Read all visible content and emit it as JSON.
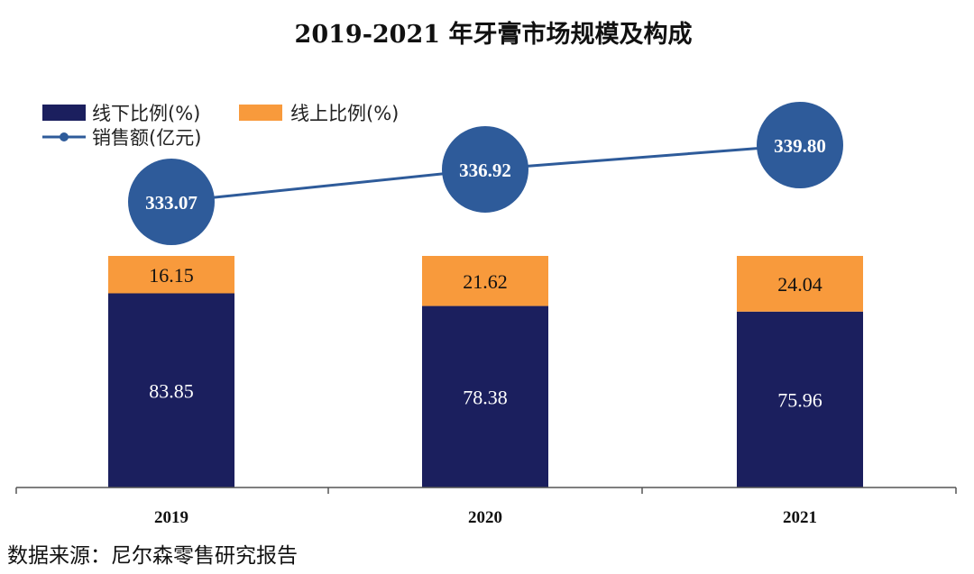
{
  "chart_data": {
    "type": "bar",
    "stacked": true,
    "title": "2019-2021 年牙膏市场规模及构成",
    "categories": [
      "2019",
      "2020",
      "2021"
    ],
    "series": [
      {
        "name": "线下比例(%)",
        "legend_label": "线下比例(%)",
        "color": "#1b1f5e",
        "values": [
          83.85,
          78.38,
          75.96
        ]
      },
      {
        "name": "线上比例(%)",
        "legend_label": "线上比例(%)",
        "color": "#f89a3c",
        "values": [
          16.15,
          21.62,
          24.04
        ]
      }
    ],
    "line_series": {
      "name": "销售额(亿元)",
      "legend_label": "销售额(亿元)",
      "color": "#2e5b9a",
      "values": [
        333.07,
        336.92,
        339.8
      ],
      "value_labels": [
        "333.07",
        "336.92",
        "339.80"
      ]
    },
    "bar_value_labels": [
      [
        "83.85",
        "78.38",
        "75.96"
      ],
      [
        "16.15",
        "21.62",
        "24.04"
      ]
    ],
    "ylim": [
      0,
      100
    ],
    "xlabel": "",
    "ylabel": "",
    "legend_position": "top-left",
    "grid": false
  },
  "source_note": "数据来源：尼尔森零售研究报告"
}
